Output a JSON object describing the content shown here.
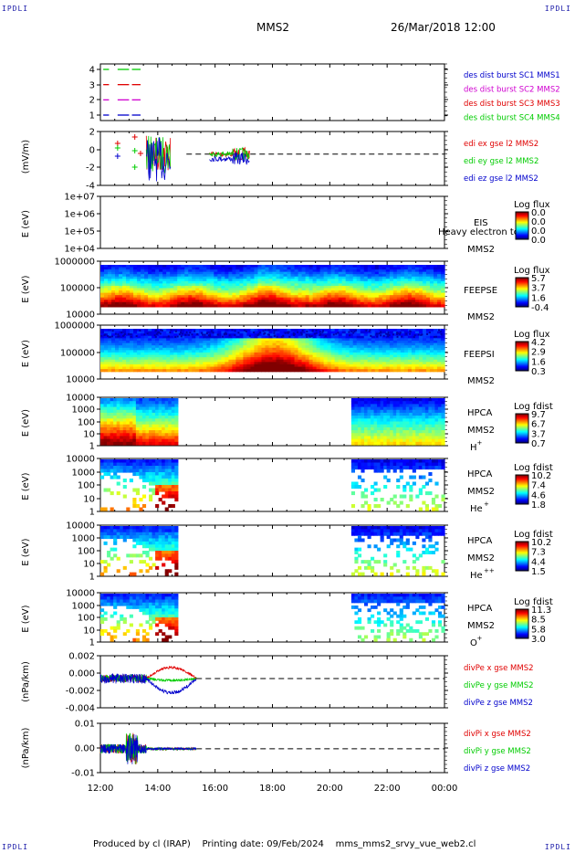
{
  "corners": {
    "tl": "IPDLI",
    "tr": "IPDLI",
    "bl": "IPDLI",
    "br": "IPDLI"
  },
  "header": {
    "spacecraft": "MMS2",
    "datetime": "26/Mar/2018 12:00"
  },
  "footer": {
    "text": "Produced by cl (IRAP)    Printing date: 09/Feb/2024    mms_mms2_srvy_vue_web2.cl"
  },
  "time_axis": {
    "ticks": [
      "12:00",
      "14:00",
      "16:00",
      "18:00",
      "20:00",
      "22:00",
      "00:00"
    ]
  },
  "colors": {
    "red": "#e00000",
    "green": "#00cc00",
    "blue": "#0000cc",
    "magenta": "#d000d0"
  },
  "chart_data": [
    {
      "type": "line",
      "panel": "burst",
      "yticks": [
        "4",
        "3",
        "2",
        "1"
      ],
      "legend": [
        {
          "label": "des dist burst SC1 MMS1",
          "color": "#0000cc"
        },
        {
          "label": "des dist burst SC2 MMS2",
          "color": "#d000d0"
        },
        {
          "label": "des dist burst SC3 MMS3",
          "color": "#e00000"
        },
        {
          "label": "des dist burst SC4 MMS4",
          "color": "#00cc00"
        }
      ],
      "series": [
        {
          "name": "SC4",
          "y": 4,
          "x": [
            "12:00",
            "13:30"
          ]
        },
        {
          "name": "SC3",
          "y": 3,
          "x": [
            "12:00",
            "13:30"
          ]
        },
        {
          "name": "SC2",
          "y": 2,
          "x": [
            "12:00",
            "13:30"
          ]
        },
        {
          "name": "SC1",
          "y": 1,
          "x": [
            "12:00",
            "13:30"
          ]
        }
      ]
    },
    {
      "type": "line",
      "panel": "edi",
      "ylabel": "(mV/m)",
      "yticks": [
        "2",
        "0",
        "-2",
        "-4"
      ],
      "legend": [
        {
          "label": "edi ex gse l2 MMS2",
          "color": "#e00000"
        },
        {
          "label": "edi ey gse l2 MMS2",
          "color": "#00cc00"
        },
        {
          "label": "edi ez gse l2 MMS2",
          "color": "#0000cc"
        }
      ]
    },
    {
      "type": "heatmap",
      "panel": "eis",
      "ylabel": "E (eV)",
      "yticks": [
        "1e+07",
        "1e+06",
        "1e+05",
        "1e+04"
      ],
      "labels": [
        "EIS",
        "Heavy electron to",
        "MMS2"
      ],
      "cbar_title": "Log flux",
      "cbar_ticks": [
        "0.0",
        "0.0",
        "0.0",
        "0.0"
      ]
    },
    {
      "type": "heatmap",
      "panel": "feepse",
      "ylabel": "E (eV)",
      "yticks": [
        "1000000",
        "100000",
        "10000"
      ],
      "labels": [
        "FEEPSE",
        "MMS2"
      ],
      "cbar_title": "Log flux",
      "cbar_ticks": [
        "5.7",
        "3.7",
        "1.6",
        "-0.4"
      ]
    },
    {
      "type": "heatmap",
      "panel": "feepsi",
      "ylabel": "E (eV)",
      "yticks": [
        "1000000",
        "100000",
        "10000"
      ],
      "labels": [
        "FEEPSI",
        "MMS2"
      ],
      "cbar_title": "Log flux",
      "cbar_ticks": [
        "4.2",
        "2.9",
        "1.6",
        "0.3"
      ]
    },
    {
      "type": "heatmap",
      "panel": "hpca_h",
      "ylabel": "E (eV)",
      "yticks": [
        "10000",
        "1000",
        "100",
        "10",
        "1"
      ],
      "labels": [
        "HPCA",
        "MMS2",
        "H",
        "+"
      ],
      "cbar_title": "Log fdist",
      "cbar_ticks": [
        "9.7",
        "6.7",
        "3.7",
        "0.7"
      ]
    },
    {
      "type": "heatmap",
      "panel": "hpca_he",
      "ylabel": "E (eV)",
      "yticks": [
        "10000",
        "1000",
        "100",
        "10",
        "1"
      ],
      "labels": [
        "HPCA",
        "MMS2",
        "He",
        "+"
      ],
      "cbar_title": "Log fdist",
      "cbar_ticks": [
        "10.2",
        "7.4",
        "4.6",
        "1.8"
      ]
    },
    {
      "type": "heatmap",
      "panel": "hpca_hepp",
      "ylabel": "E (eV)",
      "yticks": [
        "10000",
        "1000",
        "100",
        "10",
        "1"
      ],
      "labels": [
        "HPCA",
        "MMS2",
        "He",
        "++"
      ],
      "cbar_title": "Log fdist",
      "cbar_ticks": [
        "10.2",
        "7.3",
        "4.4",
        "1.5"
      ]
    },
    {
      "type": "heatmap",
      "panel": "hpca_o",
      "ylabel": "E (eV)",
      "yticks": [
        "10000",
        "1000",
        "100",
        "10",
        "1"
      ],
      "labels": [
        "HPCA",
        "MMS2",
        "O",
        "+"
      ],
      "cbar_title": "Log fdist",
      "cbar_ticks": [
        "11.3",
        "8.5",
        "5.8",
        "3.0"
      ]
    },
    {
      "type": "line",
      "panel": "divpe",
      "ylabel": "(nPa/km)",
      "yticks": [
        "0.002",
        "0.000",
        "-0.002",
        "-0.004"
      ],
      "legend": [
        {
          "label": "divPe x gse MMS2",
          "color": "#e00000"
        },
        {
          "label": "divPe y gse MMS2",
          "color": "#00cc00"
        },
        {
          "label": "divPe z gse MMS2",
          "color": "#0000cc"
        }
      ]
    },
    {
      "type": "line",
      "panel": "divpi",
      "ylabel": "(nPa/km)",
      "yticks": [
        "0.01",
        "0.00",
        "-0.01"
      ],
      "legend": [
        {
          "label": "divPi x gse MMS2",
          "color": "#e00000"
        },
        {
          "label": "divPi y gse MMS2",
          "color": "#00cc00"
        },
        {
          "label": "divPi z gse MMS2",
          "color": "#0000cc"
        }
      ]
    }
  ]
}
